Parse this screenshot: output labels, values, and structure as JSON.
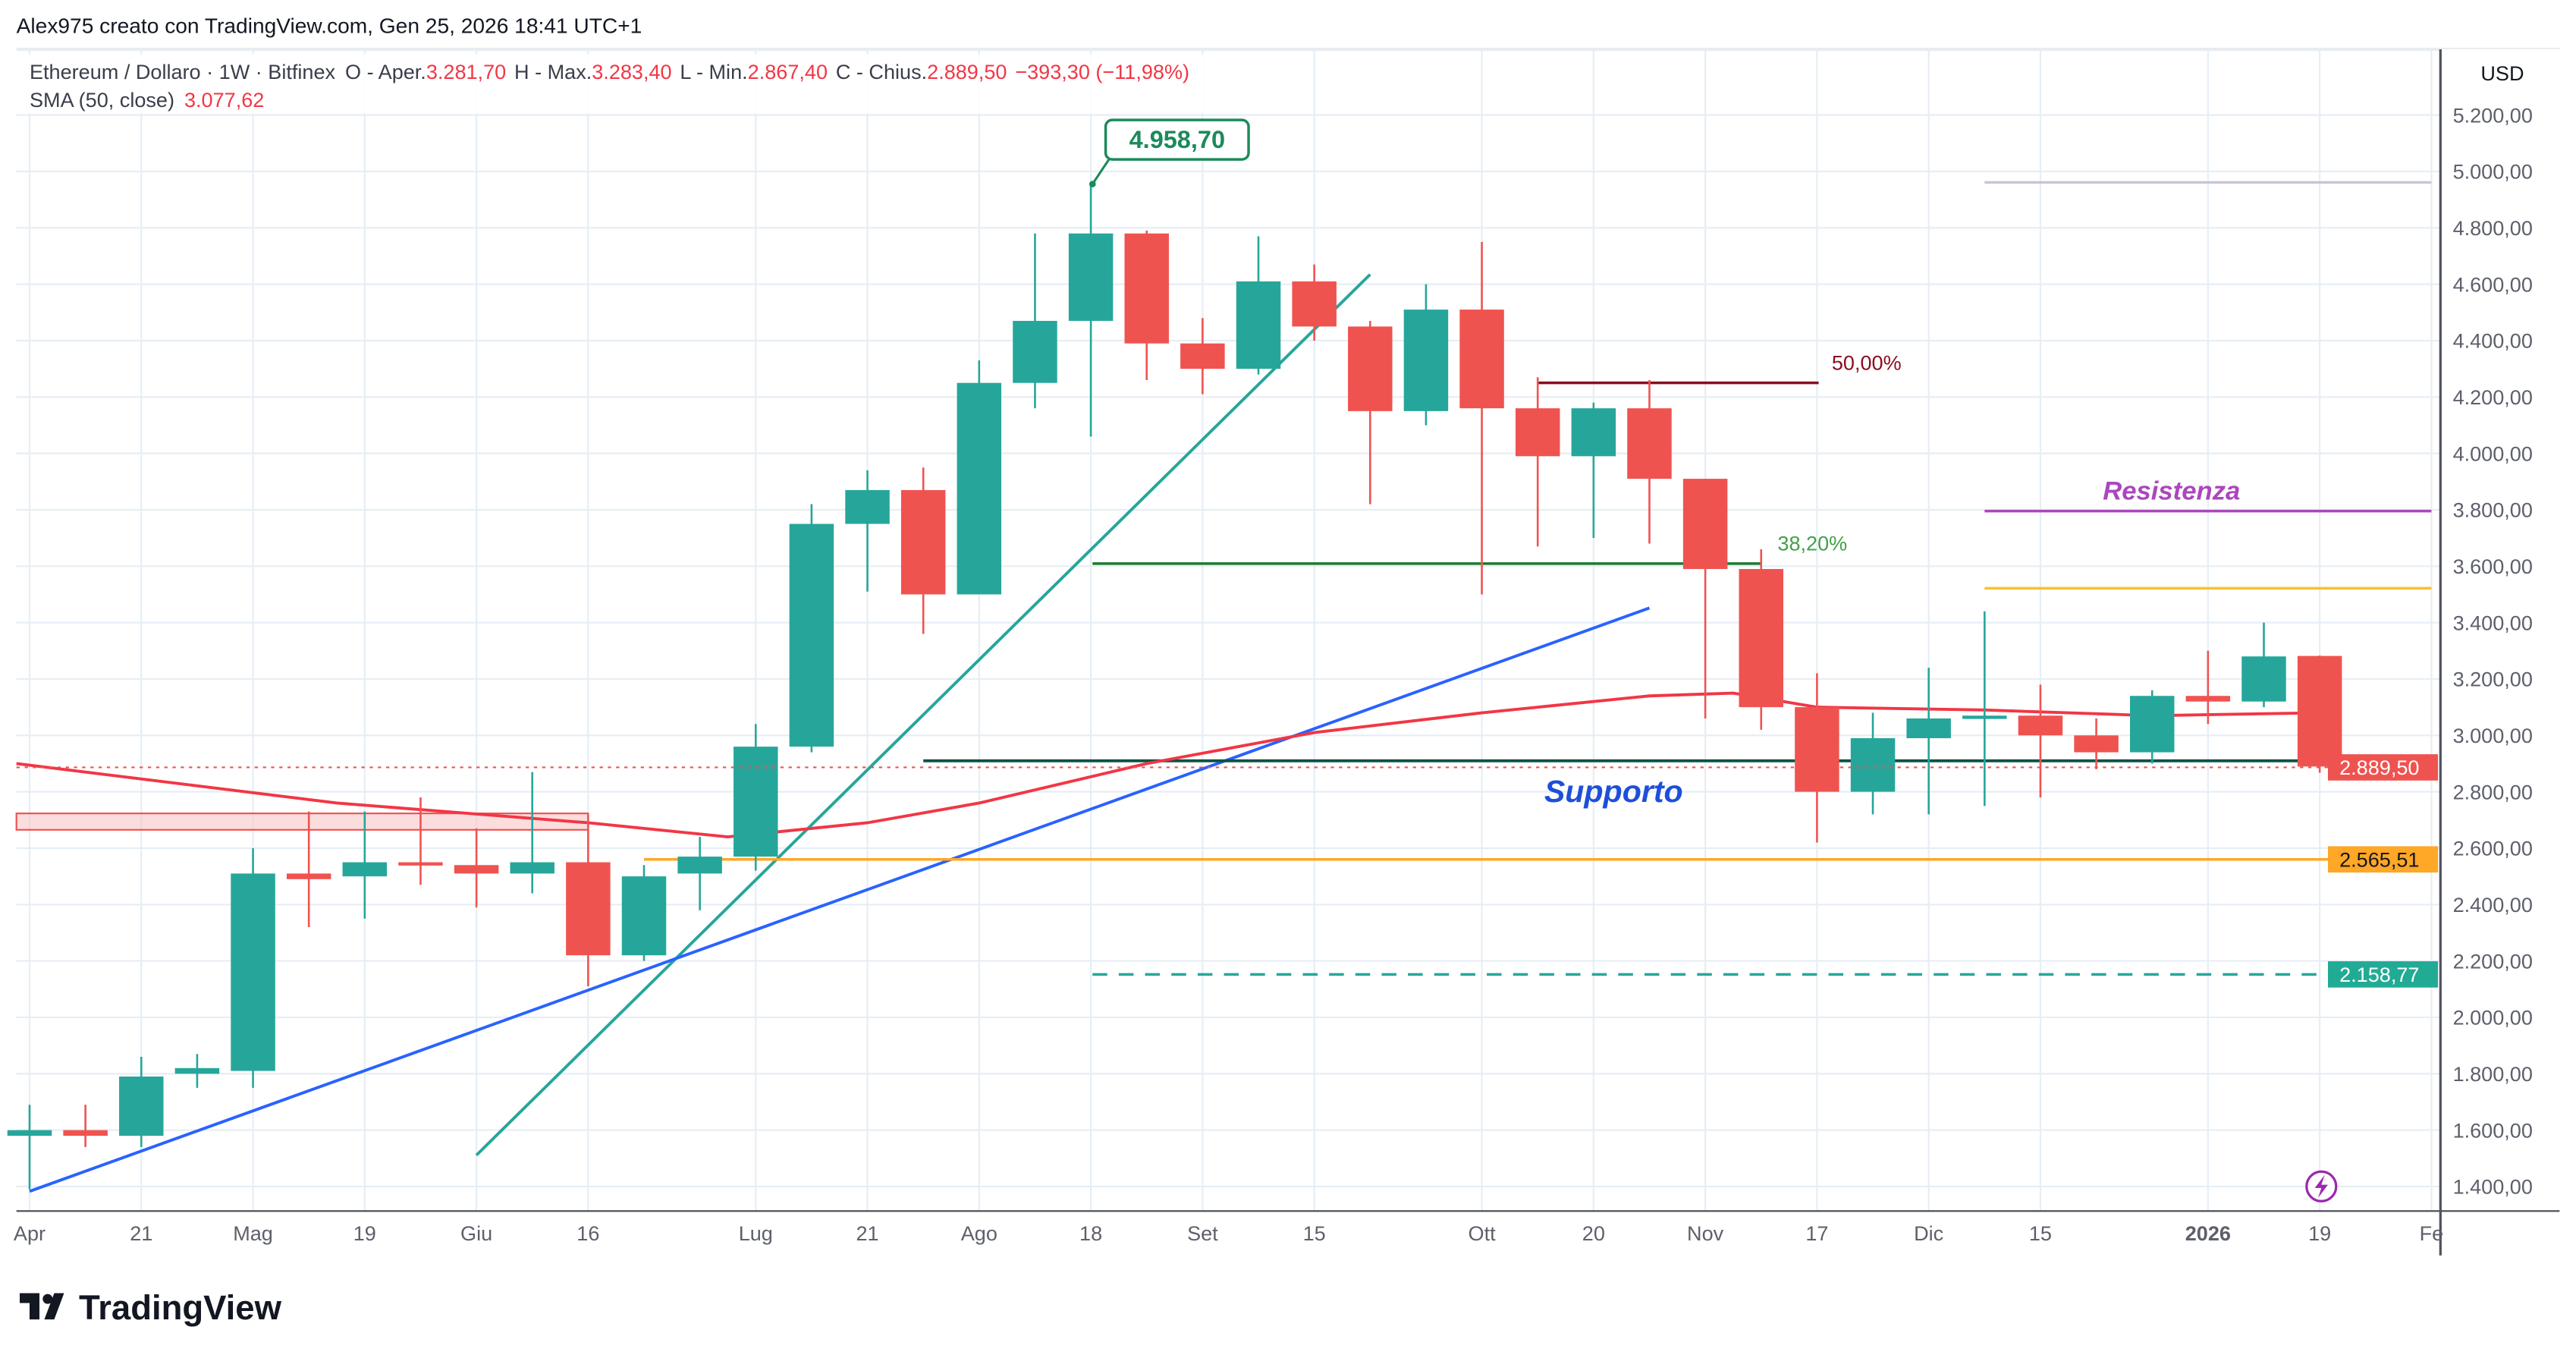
{
  "header": {
    "attribution": "Alex975 creato con TradingView.com, Gen 25, 2026 18:41 UTC+1",
    "symbol": "Ethereum / Dollaro · 1W · Bitfinex",
    "open_label": "O - Aper.",
    "open": "3.281,70",
    "high_label": "H - Max.",
    "high": "3.283,40",
    "low_label": "L - Min.",
    "low": "2.867,40",
    "close_label": "C - Chius.",
    "close": "2.889,50",
    "change": "−393,30 (−11,98%)",
    "sma_label": "SMA (50, close)",
    "sma_value": "3.077,62"
  },
  "colors": {
    "up": "#26a69a",
    "down": "#ef5350",
    "sma": "#f23645",
    "grid": "#e6eef5"
  },
  "chart_data": {
    "type": "candlestick",
    "interval": "1W",
    "currency": "USD",
    "ylim": [
      1350,
      5300
    ],
    "y_ticks": [
      1400,
      1600,
      1800,
      2000,
      2200,
      2400,
      2600,
      2800,
      3000,
      3200,
      3400,
      3600,
      3800,
      4000,
      4200,
      4400,
      4600,
      4800,
      5000,
      5200
    ],
    "y_tick_labels": [
      "1.400,00",
      "1.600,00",
      "1.800,00",
      "2.000,00",
      "2.200,00",
      "2.400,00",
      "2.600,00",
      "2.800,00",
      "3.000,00",
      "3.200,00",
      "3.400,00",
      "3.600,00",
      "3.800,00",
      "4.000,00",
      "4.200,00",
      "4.400,00",
      "4.600,00",
      "4.800,00",
      "5.000,00",
      "5.200,00"
    ],
    "x_ticks": [
      {
        "label": "Apr",
        "week": 0
      },
      {
        "label": "21",
        "week": 2
      },
      {
        "label": "Mag",
        "week": 4
      },
      {
        "label": "19",
        "week": 6
      },
      {
        "label": "Giu",
        "week": 8
      },
      {
        "label": "16",
        "week": 10
      },
      {
        "label": "Lug",
        "week": 13
      },
      {
        "label": "21",
        "week": 15
      },
      {
        "label": "Ago",
        "week": 17
      },
      {
        "label": "18",
        "week": 19
      },
      {
        "label": "Set",
        "week": 21
      },
      {
        "label": "15",
        "week": 23
      },
      {
        "label": "Ott",
        "week": 26
      },
      {
        "label": "20",
        "week": 28
      },
      {
        "label": "Nov",
        "week": 30
      },
      {
        "label": "17",
        "week": 32
      },
      {
        "label": "Dic",
        "week": 34
      },
      {
        "label": "15",
        "week": 36
      },
      {
        "label": "2026",
        "week": 39
      },
      {
        "label": "19",
        "week": 41
      },
      {
        "label": "Fe",
        "week": 43
      }
    ],
    "candles": [
      [
        1580,
        1690,
        1390,
        1600
      ],
      [
        1600,
        1690,
        1540,
        1580
      ],
      [
        1580,
        1860,
        1540,
        1790
      ],
      [
        1800,
        1870,
        1750,
        1820
      ],
      [
        1810,
        2600,
        1750,
        2510
      ],
      [
        2510,
        2730,
        2320,
        2490
      ],
      [
        2500,
        2730,
        2350,
        2550
      ],
      [
        2550,
        2780,
        2470,
        2540
      ],
      [
        2540,
        2670,
        2390,
        2510
      ],
      [
        2510,
        2870,
        2440,
        2550
      ],
      [
        2550,
        2720,
        2110,
        2220
      ],
      [
        2220,
        2540,
        2200,
        2500
      ],
      [
        2510,
        2640,
        2380,
        2570
      ],
      [
        2570,
        3040,
        2520,
        2960
      ],
      [
        2960,
        3820,
        2940,
        3750
      ],
      [
        3750,
        3940,
        3510,
        3870
      ],
      [
        3870,
        3950,
        3360,
        3500
      ],
      [
        3500,
        4330,
        3500,
        4250
      ],
      [
        4250,
        4780,
        4160,
        4470
      ],
      [
        4470,
        4958.7,
        4060,
        4780
      ],
      [
        4780,
        4790,
        4260,
        4390
      ],
      [
        4390,
        4480,
        4210,
        4300
      ],
      [
        4300,
        4770,
        4280,
        4610
      ],
      [
        4610,
        4670,
        4400,
        4450
      ],
      [
        4450,
        4470,
        3820,
        4150
      ],
      [
        4150,
        4600,
        4100,
        4510
      ],
      [
        4510,
        4750,
        3500,
        4160
      ],
      [
        4160,
        4270,
        3670,
        3990
      ],
      [
        3990,
        4180,
        3700,
        4160
      ],
      [
        4160,
        4260,
        3680,
        3910
      ],
      [
        3910,
        3910,
        3060,
        3590
      ],
      [
        3590,
        3660,
        3020,
        3100
      ],
      [
        3100,
        3220,
        2620,
        2800
      ],
      [
        2800,
        3080,
        2720,
        2990
      ],
      [
        2990,
        3240,
        2720,
        3060
      ],
      [
        3060,
        3440,
        2750,
        3070
      ],
      [
        3070,
        3180,
        2780,
        3000
      ],
      [
        3000,
        3060,
        2880,
        2940
      ],
      [
        2940,
        3160,
        2900,
        3140
      ],
      [
        3140,
        3300,
        3040,
        3120
      ],
      [
        3120,
        3400,
        3100,
        3280
      ],
      [
        3281.7,
        3283.4,
        2867.4,
        2889.5
      ]
    ],
    "candle_fields": [
      "open",
      "high",
      "low",
      "close"
    ],
    "sma50": [
      [
        0,
        2900
      ],
      [
        5.5,
        2760
      ],
      [
        10,
        2690
      ],
      [
        12.5,
        2640
      ],
      [
        15,
        2690
      ],
      [
        17,
        2760
      ],
      [
        20,
        2900
      ],
      [
        23,
        3010
      ],
      [
        26,
        3080
      ],
      [
        29,
        3140
      ],
      [
        30.5,
        3150
      ],
      [
        32,
        3100
      ],
      [
        35,
        3090
      ],
      [
        38,
        3070
      ],
      [
        41,
        3080
      ]
    ],
    "annotations": {
      "ath_callout": "4.958,70",
      "fib_50": "50,00%",
      "fib_382": "38,20%",
      "resistance_label": "Resistenza",
      "support_label": "Supporto",
      "last_price": "2.889,50",
      "orange_level": "2.565,51",
      "green_level": "2.158,77"
    }
  },
  "footer": {
    "logo_text": "TradingView"
  }
}
